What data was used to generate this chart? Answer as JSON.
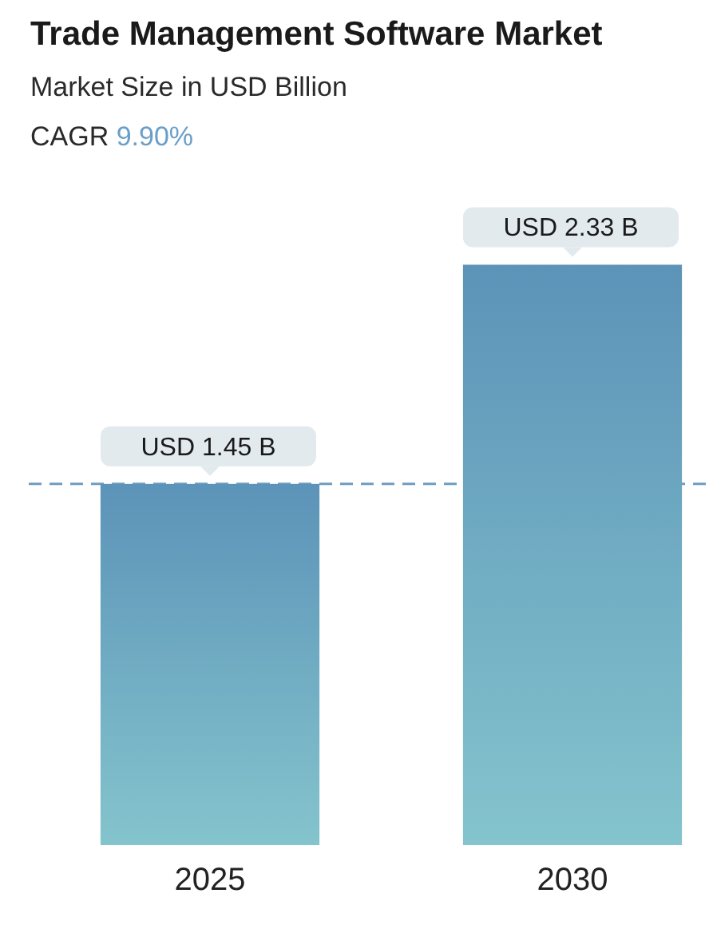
{
  "chart_data": {
    "type": "bar",
    "title": "Trade Management Software Market",
    "subtitle": "Market Size in USD Billion",
    "annotations": [
      "CAGR 9.90%"
    ],
    "categories": [
      "2025",
      "2030"
    ],
    "values": [
      1.45,
      2.33
    ],
    "value_labels": [
      "USD 1.45 B",
      "USD 2.33 B"
    ],
    "color": "#6ea8c2",
    "tick_labels": "x",
    "ref_lines": [
      {
        "axis": "y",
        "value": 1.45,
        "color": "#6f9cc2",
        "line_style": "dashed"
      }
    ]
  }
}
